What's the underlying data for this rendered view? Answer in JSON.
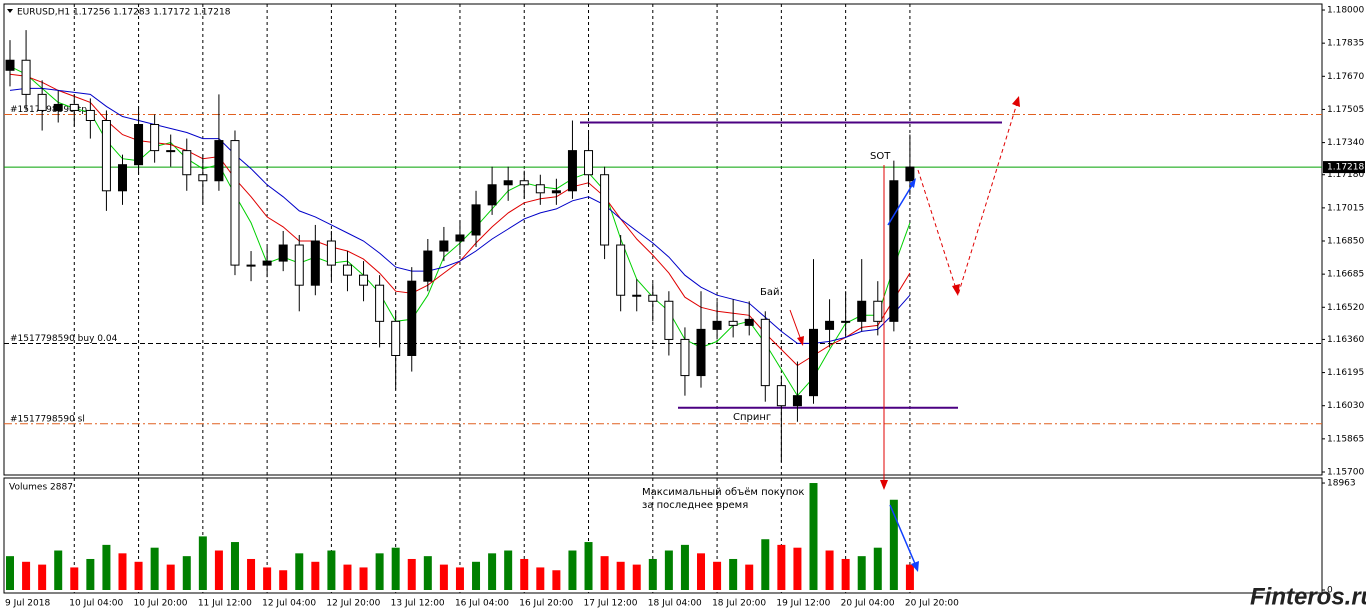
{
  "chart_data": {
    "type": "candlestick",
    "title": "EURUSD,H1 1.17256 1.17283 1.17172 1.17218",
    "categories": [
      "9 Jul 2018",
      null,
      null,
      null,
      "10 Jul 04:00",
      null,
      null,
      null,
      "10 Jul 20:00",
      null,
      null,
      null,
      "11 Jul 12:00",
      null,
      null,
      null,
      "12 Jul 04:00",
      null,
      null,
      null,
      "12 Jul 20:00",
      null,
      null,
      null,
      "13 Jul 12:00",
      null,
      null,
      null,
      "16 Jul 04:00",
      null,
      null,
      null,
      "16 Jul 20:00",
      null,
      null,
      null,
      "17 Jul 12:00",
      null,
      null,
      null,
      "18 Jul 04:00",
      null,
      null,
      null,
      "18 Jul 20:00",
      null,
      null,
      null,
      "19 Jul 12:00",
      null,
      null,
      null,
      "20 Jul 04:00",
      null,
      null,
      null,
      "20 Jul 20:00"
    ],
    "open": [
      1.177,
      1.1775,
      1.1758,
      1.175,
      1.1753,
      1.175,
      1.1745,
      1.171,
      1.1723,
      1.1743,
      1.173,
      1.173,
      1.1718,
      1.1715,
      1.1735,
      1.1673,
      1.1673,
      1.1675,
      1.1683,
      1.1663,
      1.1685,
      1.1673,
      1.1668,
      1.1663,
      1.1645,
      1.1628,
      1.1665,
      1.168,
      1.1685,
      1.1688,
      1.1703,
      1.1713,
      1.1715,
      1.1713,
      1.1709,
      1.171,
      1.173,
      1.1718,
      1.1683,
      1.1658,
      1.1658,
      1.1655,
      1.1636,
      1.1618,
      1.1641,
      1.1645,
      1.1643,
      1.1646,
      1.1613,
      1.1603,
      1.1608,
      1.1641,
      1.1645,
      1.1645,
      1.1655,
      1.1645,
      1.1715
    ],
    "high": [
      1.1785,
      1.179,
      1.1765,
      1.176,
      1.1758,
      1.1756,
      1.175,
      1.1728,
      1.1752,
      1.1748,
      1.1738,
      1.1736,
      1.1728,
      1.1758,
      1.174,
      1.168,
      1.1682,
      1.169,
      1.1688,
      1.1693,
      1.169,
      1.168,
      1.1675,
      1.1668,
      1.165,
      1.1672,
      1.1686,
      1.1692,
      1.1695,
      1.171,
      1.1722,
      1.1722,
      1.172,
      1.1718,
      1.1716,
      1.1745,
      1.174,
      1.1722,
      1.1688,
      1.1666,
      1.1664,
      1.166,
      1.1642,
      1.166,
      1.1655,
      1.1656,
      1.1655,
      1.165,
      1.1618,
      1.1625,
      1.1676,
      1.1656,
      1.166,
      1.1676,
      1.1665,
      1.1725,
      1.1738
    ],
    "low": [
      1.1762,
      1.175,
      1.174,
      1.1744,
      1.1742,
      1.1736,
      1.17,
      1.1703,
      1.1718,
      1.1724,
      1.1722,
      1.171,
      1.1703,
      1.171,
      1.1668,
      1.1665,
      1.1667,
      1.167,
      1.165,
      1.1658,
      1.1665,
      1.166,
      1.1655,
      1.1632,
      1.1611,
      1.162,
      1.166,
      1.1675,
      1.1678,
      1.1682,
      1.1698,
      1.1705,
      1.1706,
      1.1703,
      1.1703,
      1.1706,
      1.1712,
      1.1676,
      1.165,
      1.165,
      1.1645,
      1.1628,
      1.1608,
      1.1612,
      1.1636,
      1.1637,
      1.1638,
      1.1605,
      1.1575,
      1.1595,
      1.1604,
      1.1632,
      1.1638,
      1.164,
      1.1638,
      1.164,
      1.1708
    ],
    "close": [
      1.1775,
      1.1758,
      1.175,
      1.1753,
      1.175,
      1.1745,
      1.171,
      1.1723,
      1.1743,
      1.173,
      1.173,
      1.1718,
      1.1715,
      1.1735,
      1.1673,
      1.1673,
      1.1675,
      1.1683,
      1.1663,
      1.1685,
      1.1673,
      1.1668,
      1.1663,
      1.1645,
      1.1628,
      1.1665,
      1.168,
      1.1685,
      1.1688,
      1.1703,
      1.1713,
      1.1715,
      1.1713,
      1.1709,
      1.171,
      1.173,
      1.1718,
      1.1683,
      1.1658,
      1.1658,
      1.1655,
      1.1636,
      1.1618,
      1.1641,
      1.1645,
      1.1643,
      1.1646,
      1.1613,
      1.1603,
      1.1608,
      1.1641,
      1.1645,
      1.1645,
      1.1655,
      1.1645,
      1.1715,
      1.17218
    ],
    "up_color": "#000000",
    "down_color": "#ffffff",
    "ylim": [
      1.15685,
      1.1803
    ],
    "yticks": [
      {
        "value": 1.18,
        "label": "1.18000"
      },
      {
        "value": 1.17835,
        "label": "1.17835"
      },
      {
        "value": 1.1767,
        "label": "1.17670"
      },
      {
        "value": 1.17505,
        "label": "1.17505"
      },
      {
        "value": 1.1734,
        "label": "1.17340"
      },
      {
        "value": 1.1718,
        "label": "1.17180"
      },
      {
        "value": 1.17015,
        "label": "1.17015"
      },
      {
        "value": 1.1685,
        "label": "1.16850"
      },
      {
        "value": 1.16685,
        "label": "1.16685"
      },
      {
        "value": 1.1652,
        "label": "1.16520"
      },
      {
        "value": 1.1636,
        "label": "1.16360"
      },
      {
        "value": 1.16195,
        "label": "1.16195"
      },
      {
        "value": 1.1603,
        "label": "1.16030"
      },
      {
        "value": 1.15865,
        "label": "1.15865"
      },
      {
        "value": 1.157,
        "label": "1.15700"
      }
    ],
    "current_price": {
      "value": 1.17218,
      "label": "1.17218",
      "color": "#00a000"
    },
    "moving_averages": [
      {
        "color": "#00d000",
        "values": [
          1.1772,
          1.1768,
          1.1761,
          1.1754,
          1.1751,
          1.1749,
          1.1735,
          1.1726,
          1.1725,
          1.1732,
          1.1734,
          1.1726,
          1.1721,
          1.1723,
          1.1708,
          1.1694,
          1.1674,
          1.1677,
          1.1674,
          1.1677,
          1.1674,
          1.1675,
          1.1668,
          1.1659,
          1.1645,
          1.1646,
          1.1658,
          1.1677,
          1.1684,
          1.1692,
          1.1701,
          1.171,
          1.1714,
          1.1712,
          1.1711,
          1.1716,
          1.1719,
          1.171,
          1.1686,
          1.1666,
          1.1657,
          1.165,
          1.1636,
          1.1632,
          1.1635,
          1.1643,
          1.1645,
          1.1634,
          1.1621,
          1.1608,
          1.1617,
          1.1631,
          1.1644,
          1.1648,
          1.1648,
          1.1672,
          1.1694
        ]
      },
      {
        "color": "#e00000",
        "values": [
          1.1768,
          1.1767,
          1.1764,
          1.176,
          1.1757,
          1.1754,
          1.1745,
          1.1738,
          1.1735,
          1.1734,
          1.1733,
          1.173,
          1.1726,
          1.1727,
          1.1716,
          1.1707,
          1.1697,
          1.1692,
          1.1685,
          1.1685,
          1.1682,
          1.168,
          1.1676,
          1.1669,
          1.166,
          1.1659,
          1.1663,
          1.1669,
          1.1675,
          1.1684,
          1.1692,
          1.1699,
          1.1704,
          1.1706,
          1.1707,
          1.1712,
          1.1714,
          1.1707,
          1.1696,
          1.1686,
          1.1678,
          1.1669,
          1.1657,
          1.1652,
          1.165,
          1.1649,
          1.1648,
          1.1639,
          1.1631,
          1.1623,
          1.1628,
          1.1633,
          1.1637,
          1.1642,
          1.1643,
          1.1656,
          1.1669
        ]
      },
      {
        "color": "#0000c8",
        "values": [
          1.176,
          1.1761,
          1.1761,
          1.176,
          1.1759,
          1.1758,
          1.1752,
          1.1747,
          1.1745,
          1.1743,
          1.1741,
          1.1739,
          1.1736,
          1.1736,
          1.1728,
          1.1721,
          1.1713,
          1.1707,
          1.17,
          1.1697,
          1.1693,
          1.1689,
          1.1685,
          1.1679,
          1.1672,
          1.167,
          1.167,
          1.1672,
          1.1675,
          1.168,
          1.1686,
          1.1691,
          1.1696,
          1.1699,
          1.1701,
          1.1705,
          1.1707,
          1.1703,
          1.1696,
          1.169,
          1.1684,
          1.1677,
          1.1668,
          1.1662,
          1.1658,
          1.1656,
          1.1654,
          1.1647,
          1.164,
          1.1634,
          1.1634,
          1.1635,
          1.1637,
          1.164,
          1.1641,
          1.1649,
          1.1658
        ]
      }
    ],
    "levels": [
      {
        "label": "#1517798590 tp",
        "value": 1.1748,
        "color": "#e06020"
      },
      {
        "label": "#1517798590 buy 0.04",
        "value": 1.1634,
        "color": "#000000"
      },
      {
        "label": "#1517798590 sl",
        "value": 1.1594,
        "color": "#e06020"
      }
    ],
    "zones": [
      {
        "value": 1.1744,
        "color": "#4b0082"
      },
      {
        "value": 1.1602,
        "color": "#4b0082"
      }
    ],
    "volumes": {
      "title": "Volumes 2887",
      "up_color": "#008000",
      "down_color": "#ff0000",
      "values": [
        6000,
        5000,
        4500,
        7000,
        4000,
        5500,
        8000,
        6500,
        5000,
        7500,
        4500,
        6000,
        9500,
        7000,
        8500,
        5500,
        4000,
        3500,
        6500,
        5000,
        7000,
        4500,
        4000,
        6500,
        7500,
        5500,
        6000,
        4500,
        4000,
        5000,
        6500,
        7000,
        5500,
        4000,
        3500,
        7000,
        8500,
        6000,
        5000,
        4500,
        5500,
        7000,
        8000,
        6500,
        5000,
        5500,
        4500,
        9000,
        8000,
        7500,
        18963,
        7000,
        5500,
        6000,
        7500,
        16000,
        4500
      ],
      "vlim": [
        0,
        19500
      ],
      "vticks": [
        18963,
        0
      ]
    },
    "annotations": {
      "buy": "Бай",
      "spring": "Спринг",
      "sot": "SOT",
      "volume_note_1": "Максимальный объём покупок",
      "volume_note_2": "за последнее время"
    },
    "watermark": "Finteros.ru"
  }
}
